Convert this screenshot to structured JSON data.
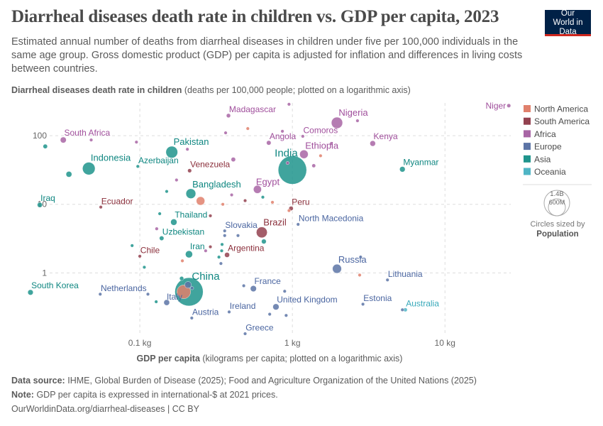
{
  "header": {
    "title": "Diarrheal diseases death rate in children vs. GDP per capita, 2023",
    "subtitle": "Estimated annual number of deaths from diarrheal diseases in children under five per 100,000 individuals in the same age group. Gross domestic product (GDP) per capita is adjusted for inflation and differences in living costs between countries.",
    "logo": "Our World in Data"
  },
  "footer": {
    "source_label": "Data source:",
    "source": "IHME, Global Burden of Disease (2025); Food and Agriculture Organization of the United Nations (2025)",
    "note_label": "Note:",
    "note": "GDP per capita is expressed in international-$ at 2021 prices.",
    "url": "OurWorldinData.org/diarrheal-diseases | CC BY"
  },
  "chart_data": {
    "type": "scatter",
    "title": "Diarrheal diseases death rate in children vs. GDP per capita, 2023",
    "ylabel_bold": "Diarrheal diseases death rate in children",
    "ylabel_rest": "(deaths per 100,000 people; plotted on a logarithmic axis)",
    "xlabel_bold": "GDP per capita",
    "xlabel_rest": "(kilograms per capita; plotted on a logarithmic axis)",
    "x_scale": "log",
    "y_scale": "log",
    "xlim": [
      0.0186,
      27
    ],
    "ylim": [
      0.13,
      300
    ],
    "x_ticks": [
      {
        "value": 0.1,
        "label": "0.1 kg"
      },
      {
        "value": 1,
        "label": "1 kg"
      },
      {
        "value": 10,
        "label": "10 kg"
      }
    ],
    "y_ticks": [
      {
        "value": 1,
        "label": "1"
      },
      {
        "value": 10,
        "label": "10"
      },
      {
        "value": 100,
        "label": "100"
      }
    ],
    "grid": true,
    "legend_position": "right",
    "legend": [
      {
        "name": "North America",
        "color": "#E0806C"
      },
      {
        "name": "South America",
        "color": "#93414F"
      },
      {
        "name": "Africa",
        "color": "#A865A5"
      },
      {
        "name": "Europe",
        "color": "#5C74A6"
      },
      {
        "name": "Asia",
        "color": "#1F948C"
      },
      {
        "name": "Oceania",
        "color": "#4FB5C5"
      }
    ],
    "label_colors": {
      "North America": "#C9624F",
      "South America": "#8A2E3A",
      "Africa": "#A04F9C",
      "Europe": "#4A65A0",
      "Asia": "#0E8680",
      "Oceania": "#38A9BA"
    },
    "size_legend": {
      "big": "1.4B",
      "small": "600M",
      "caption": "Circles sized by",
      "variable": "Population"
    },
    "points": [
      {
        "label": "Niger",
        "region": "Africa",
        "x": 26.2,
        "y": 274,
        "pop": 27
      },
      {
        "label": "Madagascar",
        "region": "Africa",
        "x": 0.381,
        "y": 196,
        "pop": 31
      },
      {
        "label": "Nigeria",
        "region": "Africa",
        "x": 1.96,
        "y": 154,
        "pop": 227
      },
      {
        "label": "South Africa",
        "region": "Africa",
        "x": 0.0315,
        "y": 86.6,
        "pop": 63
      },
      {
        "label": "Comoros",
        "region": "Africa",
        "x": 1.17,
        "y": 98,
        "pop": 0.85
      },
      {
        "label": "Angola",
        "region": "Africa",
        "x": 0.7,
        "y": 78.7,
        "pop": 37
      },
      {
        "label": "Kenya",
        "region": "Africa",
        "x": 3.36,
        "y": 77,
        "pop": 55
      },
      {
        "label": "Pakistan",
        "region": "Asia",
        "x": 0.162,
        "y": 57.6,
        "pop": 247
      },
      {
        "label": "Ethiopia",
        "region": "Africa",
        "x": 1.19,
        "y": 53.6,
        "pop": 128
      },
      {
        "label": "Indonesia",
        "region": "Asia",
        "x": 0.0463,
        "y": 33.2,
        "pop": 281
      },
      {
        "label": "Azerbaijan",
        "region": "Asia",
        "x": 0.097,
        "y": 35.7,
        "pop": 10
      },
      {
        "label": "India",
        "region": "Asia",
        "x": 1.0,
        "y": 31.6,
        "pop": 1438
      },
      {
        "label": "Myanmar",
        "region": "Asia",
        "x": 5.26,
        "y": 32.4,
        "pop": 54
      },
      {
        "label": "Venezuela",
        "region": "South America",
        "x": 0.212,
        "y": 30.9,
        "pop": 28
      },
      {
        "label": "Bangladesh",
        "region": "Asia",
        "x": 0.216,
        "y": 14.3,
        "pop": 171
      },
      {
        "label": "Egypt",
        "region": "Africa",
        "x": 0.59,
        "y": 16.5,
        "pop": 113
      },
      {
        "label": "Iraq",
        "region": "Asia",
        "x": 0.0221,
        "y": 9.8,
        "pop": 45
      },
      {
        "label": "Ecuador",
        "region": "South America",
        "x": 0.0555,
        "y": 9.1,
        "pop": 18
      },
      {
        "label": "Peru",
        "region": "South America",
        "x": 0.98,
        "y": 8.7,
        "pop": 34
      },
      {
        "label": "Thailand",
        "region": "Asia",
        "x": 0.167,
        "y": 5.5,
        "pop": 71
      },
      {
        "label": "North Macedonia",
        "region": "Europe",
        "x": 1.09,
        "y": 5.1,
        "pop": 1.8
      },
      {
        "label": "Brazil",
        "region": "South America",
        "x": 0.63,
        "y": 3.9,
        "pop": 211
      },
      {
        "label": "Slovakia",
        "region": "Europe",
        "x": 0.36,
        "y": 4.1,
        "pop": 5.5
      },
      {
        "label": "Uzbekistan",
        "region": "Asia",
        "x": 0.139,
        "y": 3.2,
        "pop": 36
      },
      {
        "label": "Iran",
        "region": "Asia",
        "x": 0.21,
        "y": 1.87,
        "pop": 90
      },
      {
        "label": "Argentina",
        "region": "South America",
        "x": 0.373,
        "y": 1.83,
        "pop": 45
      },
      {
        "label": "Chile",
        "region": "South America",
        "x": 0.1,
        "y": 1.75,
        "pop": 19.6
      },
      {
        "label": "Russia",
        "region": "Europe",
        "x": 1.96,
        "y": 1.15,
        "pop": 145
      },
      {
        "label": "Lithuania",
        "region": "Europe",
        "x": 4.2,
        "y": 0.79,
        "pop": 2.9
      },
      {
        "label": "China",
        "region": "Asia",
        "x": 0.21,
        "y": 0.53,
        "pop": 1422
      },
      {
        "label": "South Korea",
        "region": "Asia",
        "x": 0.0192,
        "y": 0.52,
        "pop": 51.7
      },
      {
        "label": "Netherlands",
        "region": "Europe",
        "x": 0.055,
        "y": 0.49,
        "pop": 17.9
      },
      {
        "label": "France",
        "region": "Europe",
        "x": 0.555,
        "y": 0.59,
        "pop": 66
      },
      {
        "label": "Italy",
        "region": "Europe",
        "x": 0.15,
        "y": 0.37,
        "pop": 59
      },
      {
        "label": "United Kingdom",
        "region": "Europe",
        "x": 0.78,
        "y": 0.32,
        "pop": 68
      },
      {
        "label": "Estonia",
        "region": "Europe",
        "x": 2.9,
        "y": 0.35,
        "pop": 1.3
      },
      {
        "label": "Australia",
        "region": "Oceania",
        "x": 5.5,
        "y": 0.29,
        "pop": 26.6
      },
      {
        "label": "Ireland",
        "region": "Europe",
        "x": 0.385,
        "y": 0.27,
        "pop": 5.2
      },
      {
        "label": "Austria",
        "region": "Europe",
        "x": 0.219,
        "y": 0.22,
        "pop": 9.1
      },
      {
        "label": "Greece",
        "region": "Europe",
        "x": 0.49,
        "y": 0.13,
        "pop": 10
      },
      {
        "label": "",
        "region": "Asia",
        "x": 0.024,
        "y": 69.8,
        "pop": 35
      },
      {
        "label": "",
        "region": "Asia",
        "x": 0.0343,
        "y": 27.4,
        "pop": 60
      },
      {
        "label": "",
        "region": "Asia",
        "x": 0.15,
        "y": 15.4,
        "pop": 10
      },
      {
        "label": "",
        "region": "Asia",
        "x": 0.64,
        "y": 12.7,
        "pop": 10
      },
      {
        "label": "",
        "region": "Asia",
        "x": 0.135,
        "y": 7.3,
        "pop": 5
      },
      {
        "label": "",
        "region": "Asia",
        "x": 0.089,
        "y": 2.5,
        "pop": 5
      },
      {
        "label": "",
        "region": "Asia",
        "x": 0.107,
        "y": 1.21,
        "pop": 5
      },
      {
        "label": "",
        "region": "Asia",
        "x": 0.346,
        "y": 2.6,
        "pop": 5
      },
      {
        "label": "",
        "region": "Asia",
        "x": 0.344,
        "y": 2.1,
        "pop": 6
      },
      {
        "label": "",
        "region": "Asia",
        "x": 0.33,
        "y": 1.7,
        "pop": 6
      },
      {
        "label": "",
        "region": "Asia",
        "x": 0.65,
        "y": 2.87,
        "pop": 40
      },
      {
        "label": "",
        "region": "Asia",
        "x": 0.128,
        "y": 0.38,
        "pop": 5
      },
      {
        "label": "",
        "region": "Asia",
        "x": 0.188,
        "y": 0.83,
        "pop": 30
      },
      {
        "label": "",
        "region": "Africa",
        "x": 0.095,
        "y": 80.6,
        "pop": 12
      },
      {
        "label": "",
        "region": "Africa",
        "x": 0.048,
        "y": 86.6,
        "pop": 8
      },
      {
        "label": "",
        "region": "Africa",
        "x": 0.365,
        "y": 110,
        "pop": 8
      },
      {
        "label": "",
        "region": "Africa",
        "x": 0.95,
        "y": 287,
        "pop": 6
      },
      {
        "label": "",
        "region": "Africa",
        "x": 0.205,
        "y": 63.4,
        "pop": 6
      },
      {
        "label": "",
        "region": "Africa",
        "x": 0.41,
        "y": 45,
        "pop": 35
      },
      {
        "label": "",
        "region": "Africa",
        "x": 0.93,
        "y": 40,
        "pop": 10
      },
      {
        "label": "",
        "region": "Africa",
        "x": 1.38,
        "y": 36.5,
        "pop": 25
      },
      {
        "label": "",
        "region": "Africa",
        "x": 0.174,
        "y": 22.6,
        "pop": 8
      },
      {
        "label": "",
        "region": "Africa",
        "x": 0.4,
        "y": 13.7,
        "pop": 12
      },
      {
        "label": "",
        "region": "Africa",
        "x": 0.129,
        "y": 4.4,
        "pop": 20
      },
      {
        "label": "",
        "region": "Africa",
        "x": 0.27,
        "y": 2.1,
        "pop": 3
      },
      {
        "label": "",
        "region": "Africa",
        "x": 0.86,
        "y": 116,
        "pop": 8
      },
      {
        "label": "",
        "region": "Africa",
        "x": 2.67,
        "y": 165,
        "pop": 8
      },
      {
        "label": "",
        "region": "Africa",
        "x": 1.8,
        "y": 77,
        "pop": 3
      },
      {
        "label": "",
        "region": "North America",
        "x": 0.51,
        "y": 127,
        "pop": 3
      },
      {
        "label": "",
        "region": "North America",
        "x": 1.53,
        "y": 51,
        "pop": 2
      },
      {
        "label": "",
        "region": "North America",
        "x": 0.25,
        "y": 11.2,
        "pop": 128
      },
      {
        "label": "",
        "region": "North America",
        "x": 0.35,
        "y": 10,
        "pop": 5
      },
      {
        "label": "",
        "region": "North America",
        "x": 0.74,
        "y": 10.7,
        "pop": 3
      },
      {
        "label": "",
        "region": "North America",
        "x": 2.76,
        "y": 0.93,
        "pop": 5
      },
      {
        "label": "",
        "region": "North America",
        "x": 0.194,
        "y": 0.53,
        "pop": 335
      },
      {
        "label": "",
        "region": "North America",
        "x": 0.19,
        "y": 1.5,
        "pop": 2
      },
      {
        "label": "",
        "region": "North America",
        "x": 0.95,
        "y": 8.1,
        "pop": 2
      },
      {
        "label": "",
        "region": "South America",
        "x": 0.49,
        "y": 11.3,
        "pop": 2
      },
      {
        "label": "",
        "region": "South America",
        "x": 0.29,
        "y": 6.8,
        "pop": 3
      },
      {
        "label": "",
        "region": "South America",
        "x": 0.29,
        "y": 2.4,
        "pop": 3
      },
      {
        "label": "",
        "region": "Europe",
        "x": 0.36,
        "y": 3.5,
        "pop": 4
      },
      {
        "label": "",
        "region": "Europe",
        "x": 0.44,
        "y": 3.5,
        "pop": 4
      },
      {
        "label": "",
        "region": "Europe",
        "x": 0.34,
        "y": 1.37,
        "pop": 4
      },
      {
        "label": "",
        "region": "Europe",
        "x": 0.48,
        "y": 0.65,
        "pop": 3
      },
      {
        "label": "",
        "region": "Europe",
        "x": 0.89,
        "y": 0.54,
        "pop": 10
      },
      {
        "label": "",
        "region": "Europe",
        "x": 0.71,
        "y": 0.25,
        "pop": 3
      },
      {
        "label": "",
        "region": "Europe",
        "x": 0.91,
        "y": 0.24,
        "pop": 3
      },
      {
        "label": "",
        "region": "Europe",
        "x": 2.8,
        "y": 1.7,
        "pop": 3
      },
      {
        "label": "",
        "region": "Europe",
        "x": 5.26,
        "y": 0.29,
        "pop": 3
      },
      {
        "label": "",
        "region": "Europe",
        "x": 0.113,
        "y": 0.49,
        "pop": 4
      },
      {
        "label": "",
        "region": "Europe",
        "x": 0.207,
        "y": 0.67,
        "pop": 80
      },
      {
        "label": "",
        "region": "Europe",
        "x": 0.22,
        "y": 0.6,
        "pop": 8
      }
    ]
  }
}
